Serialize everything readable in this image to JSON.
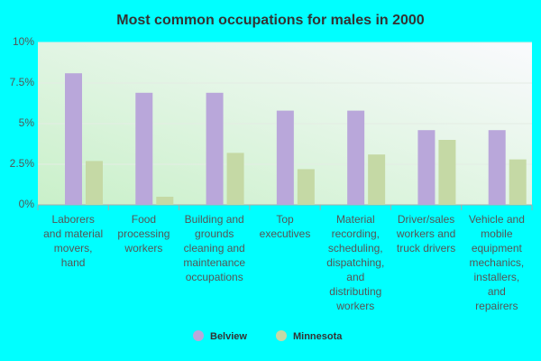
{
  "chart_data": {
    "type": "bar",
    "title": "Most common occupations for males in 2000",
    "categories": [
      "Laborers and material movers, hand",
      "Food processing workers",
      "Building and grounds cleaning and maintenance occupations",
      "Top executives",
      "Material recording, scheduling, dispatching, and distributing workers",
      "Driver/sales workers and truck drivers",
      "Vehicle and mobile equipment mechanics, installers, and repairers"
    ],
    "series": [
      {
        "name": "Belview",
        "color": "#b9a7da",
        "values": [
          8.1,
          6.9,
          6.9,
          5.8,
          5.8,
          4.6,
          4.6
        ]
      },
      {
        "name": "Minnesota",
        "color": "#c5d9a5",
        "values": [
          2.7,
          0.5,
          3.2,
          2.2,
          3.1,
          4.0,
          2.8
        ]
      }
    ],
    "ylim": [
      0,
      10
    ],
    "yticks": [
      {
        "value": 0,
        "label": "0%"
      },
      {
        "value": 2.5,
        "label": "2.5%"
      },
      {
        "value": 5,
        "label": "5%"
      },
      {
        "value": 7.5,
        "label": "7.5%"
      },
      {
        "value": 10,
        "label": "10%"
      }
    ],
    "grid": true,
    "legend": "bottom"
  }
}
